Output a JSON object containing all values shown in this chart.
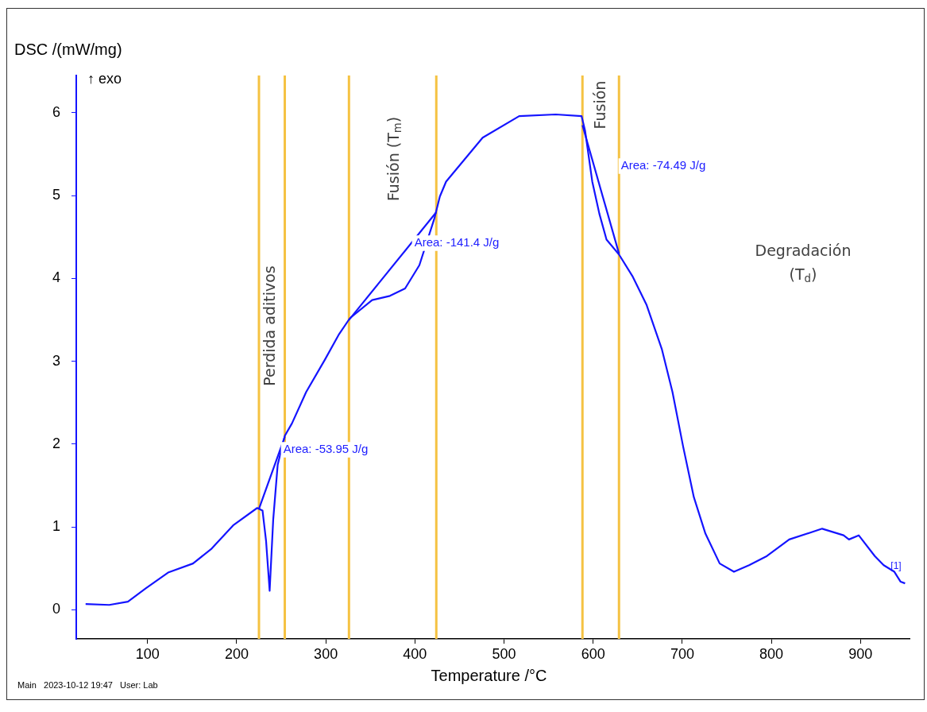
{
  "chart_data": {
    "type": "line",
    "xlabel": "Temperature /°C",
    "ylabel": "DSC /(mW/mg)",
    "xlim": [
      20,
      955
    ],
    "ylim": [
      -0.35,
      6.45
    ],
    "xticks": [
      100,
      200,
      300,
      400,
      500,
      600,
      700,
      800,
      900
    ],
    "yticks": [
      0,
      1,
      2,
      3,
      4,
      5,
      6
    ],
    "grid": false,
    "legend": false,
    "marker": "none",
    "line_style": "solid",
    "series": [
      {
        "color": "#1414ff",
        "x": [
          30.5,
          57,
          78,
          98,
          123,
          151,
          172,
          196,
          223,
          229,
          233,
          237,
          241,
          246,
          254,
          262,
          278,
          299,
          315,
          327,
          352,
          372,
          389,
          405,
          422,
          428,
          435,
          476,
          517,
          558,
          587,
          591,
          599,
          607,
          615,
          629,
          644,
          660,
          677,
          689,
          701,
          713,
          726,
          742,
          758,
          775,
          795,
          820,
          857,
          881,
          887,
          898,
          916,
          926,
          938,
          945,
          950
        ],
        "values": [
          0.07,
          0.06,
          0.1,
          0.26,
          0.45,
          0.56,
          0.74,
          1.02,
          1.23,
          1.2,
          0.83,
          0.23,
          1.09,
          1.75,
          2.1,
          2.25,
          2.63,
          3.02,
          3.33,
          3.52,
          3.74,
          3.79,
          3.88,
          4.16,
          4.73,
          4.99,
          5.17,
          5.7,
          5.96,
          5.98,
          5.96,
          5.78,
          5.17,
          4.78,
          4.47,
          4.29,
          4.03,
          3.68,
          3.15,
          2.63,
          1.97,
          1.36,
          0.92,
          0.56,
          0.46,
          0.54,
          0.65,
          0.85,
          0.98,
          0.9,
          0.85,
          0.9,
          0.65,
          0.54,
          0.46,
          0.34,
          0.32
        ]
      },
      {
        "type": "line",
        "color": "#1414ff",
        "x": [
          225,
          254
        ],
        "values": [
          1.22,
          2.09
        ]
      },
      {
        "type": "line",
        "color": "#1414ff",
        "x": [
          326,
          424
        ],
        "values": [
          3.5,
          4.8
        ]
      },
      {
        "type": "line",
        "color": "#1414ff",
        "x": [
          588,
          629
        ],
        "values": [
          5.85,
          4.3
        ]
      }
    ],
    "ref_lines": [
      {
        "axis": "x",
        "value": 225,
        "color": "#f5c242"
      },
      {
        "axis": "x",
        "value": 254,
        "color": "#f5c242"
      },
      {
        "axis": "x",
        "value": 326,
        "color": "#f5c242"
      },
      {
        "axis": "x",
        "value": 424,
        "color": "#f5c242"
      },
      {
        "axis": "x",
        "value": 588,
        "color": "#f5c242"
      },
      {
        "axis": "x",
        "value": 629,
        "color": "#f5c242"
      }
    ],
    "annotations": [
      "Perdida aditivos",
      "Fusión (T$_{m}$)",
      "Fusión",
      "Degradación",
      "(T$_{d}$)",
      "Area: -53.95 J/g",
      "Area: -141.4 J/g",
      "Area: -74.49 J/g",
      "[1]",
      "↑ exo",
      "Main   2023-10-12 19:47   User: Lab"
    ]
  }
}
